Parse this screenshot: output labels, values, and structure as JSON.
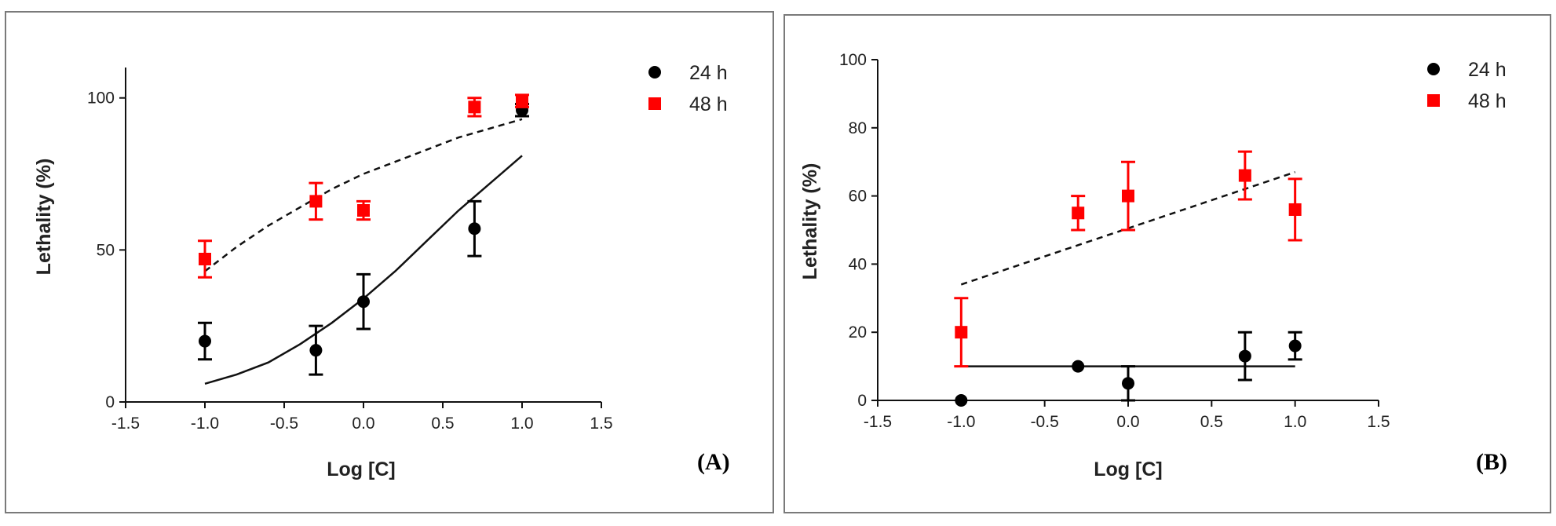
{
  "chart_data": [
    {
      "type": "scatter",
      "panel_label": "(A)",
      "xlabel": "Log [C]",
      "ylabel": "Lethality (%)",
      "xlim": [
        -1.5,
        1.5
      ],
      "ylim": [
        0,
        110
      ],
      "xticks": [
        -1.5,
        -1.0,
        -0.5,
        0.0,
        0.5,
        1.0,
        1.5
      ],
      "xtick_labels": [
        "-1.5",
        "-1.0",
        "-0.5",
        "0.0",
        "0.5",
        "1.0",
        "1.5"
      ],
      "yticks": [
        0,
        50,
        100
      ],
      "ytick_labels": [
        "0",
        "50",
        "100"
      ],
      "legend_position": "top-right",
      "grid": false,
      "series": [
        {
          "name": "24 h",
          "color": "#000000",
          "marker": "circle",
          "x": [
            -1.0,
            -0.3,
            0.0,
            0.7,
            1.0
          ],
          "y": [
            20,
            17,
            33,
            57,
            96
          ],
          "err": [
            6,
            8,
            9,
            9,
            2
          ],
          "fit": {
            "style": "solid",
            "x": [
              -1.0,
              -0.8,
              -0.6,
              -0.4,
              -0.2,
              0.0,
              0.2,
              0.4,
              0.6,
              0.8,
              1.0
            ],
            "y": [
              6,
              9,
              13,
              19,
              26,
              34,
              43,
              53,
              63,
              72,
              81
            ]
          }
        },
        {
          "name": "48 h",
          "color": "#ff0000",
          "marker": "square",
          "x": [
            -1.0,
            -0.3,
            0.0,
            0.7,
            1.0
          ],
          "y": [
            47,
            66,
            63,
            97,
            99
          ],
          "err": [
            6,
            6,
            3,
            3,
            2
          ],
          "fit": {
            "style": "dashed",
            "x": [
              -1.0,
              -0.8,
              -0.6,
              -0.4,
              -0.2,
              0.0,
              0.2,
              0.4,
              0.6,
              0.8,
              1.0
            ],
            "y": [
              43,
              51,
              58,
              64,
              70,
              75,
              79,
              83,
              87,
              90,
              93
            ]
          }
        }
      ]
    },
    {
      "type": "scatter",
      "panel_label": "(B)",
      "xlabel": "Log [C]",
      "ylabel": "Lethality (%)",
      "xlim": [
        -1.5,
        1.5
      ],
      "ylim": [
        0,
        100
      ],
      "xticks": [
        -1.5,
        -1.0,
        -0.5,
        0.0,
        0.5,
        1.0,
        1.5
      ],
      "xtick_labels": [
        "-1.5",
        "-1.0",
        "-0.5",
        "0.0",
        "0.5",
        "1.0",
        "1.5"
      ],
      "yticks": [
        0,
        20,
        40,
        60,
        80,
        100
      ],
      "ytick_labels": [
        "0",
        "20",
        "40",
        "60",
        "80",
        "100"
      ],
      "legend_position": "top-right",
      "grid": false,
      "series": [
        {
          "name": "24 h",
          "color": "#000000",
          "marker": "circle",
          "x": [
            -1.0,
            -0.3,
            0.0,
            0.7,
            1.0
          ],
          "y": [
            0,
            10,
            5,
            13,
            16
          ],
          "err": [
            0,
            0,
            5,
            7,
            4
          ],
          "fit": {
            "style": "solid",
            "x": [
              -1.0,
              1.0
            ],
            "y": [
              10,
              10
            ]
          }
        },
        {
          "name": "48 h",
          "color": "#ff0000",
          "marker": "square",
          "x": [
            -1.0,
            -0.3,
            0.0,
            0.7,
            1.0
          ],
          "y": [
            20,
            55,
            60,
            66,
            56
          ],
          "err": [
            10,
            5,
            10,
            7,
            9
          ],
          "fit": {
            "style": "dashed",
            "x": [
              -1.0,
              1.0
            ],
            "y": [
              34,
              67
            ]
          }
        }
      ]
    }
  ]
}
